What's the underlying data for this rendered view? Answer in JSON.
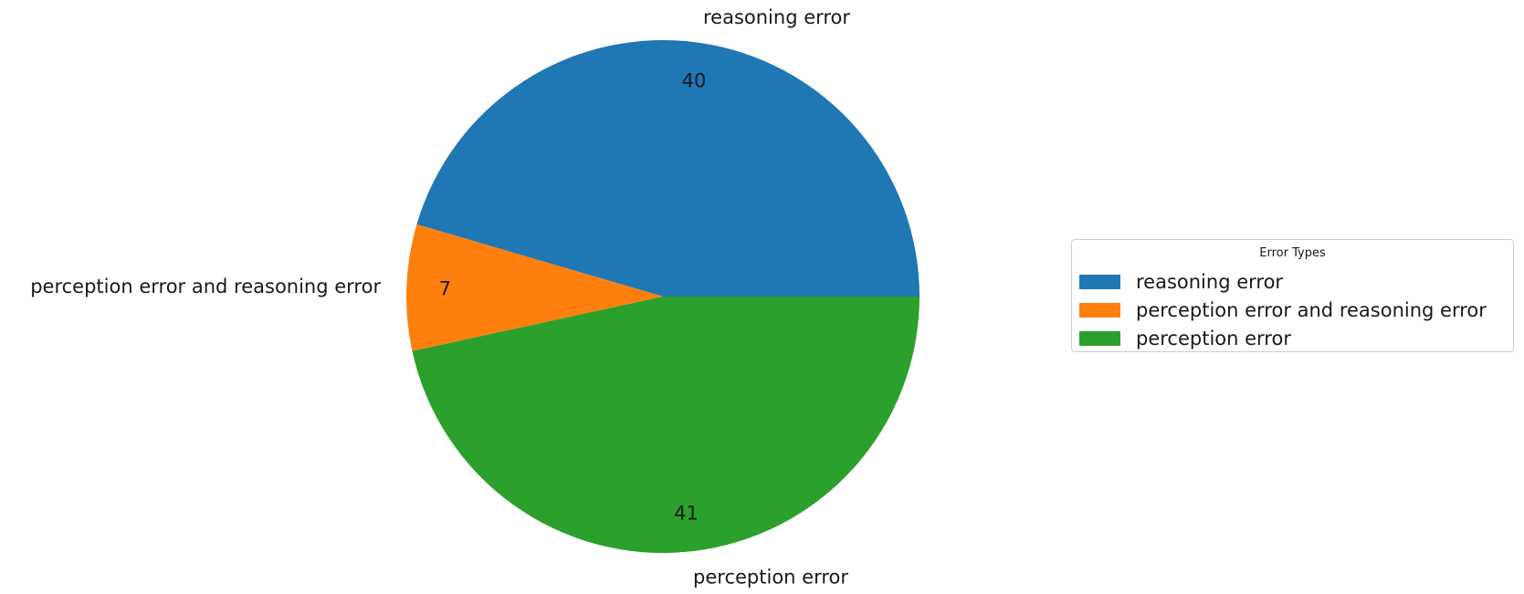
{
  "chart_data": {
    "type": "pie",
    "title": "",
    "categories": [
      "reasoning error",
      "perception error and reasoning error",
      "perception error"
    ],
    "values": [
      40,
      7,
      41
    ],
    "value_labels": [
      "40",
      "7",
      "41"
    ],
    "colors": [
      "#1f77b4",
      "#ff7f0e",
      "#2ca02c"
    ],
    "start_angle_deg": 0,
    "direction": "counterclockwise",
    "legend": {
      "title": "Error Types",
      "placement": "right",
      "entries": [
        "reasoning error",
        "perception error and reasoning error",
        "perception error"
      ]
    }
  }
}
